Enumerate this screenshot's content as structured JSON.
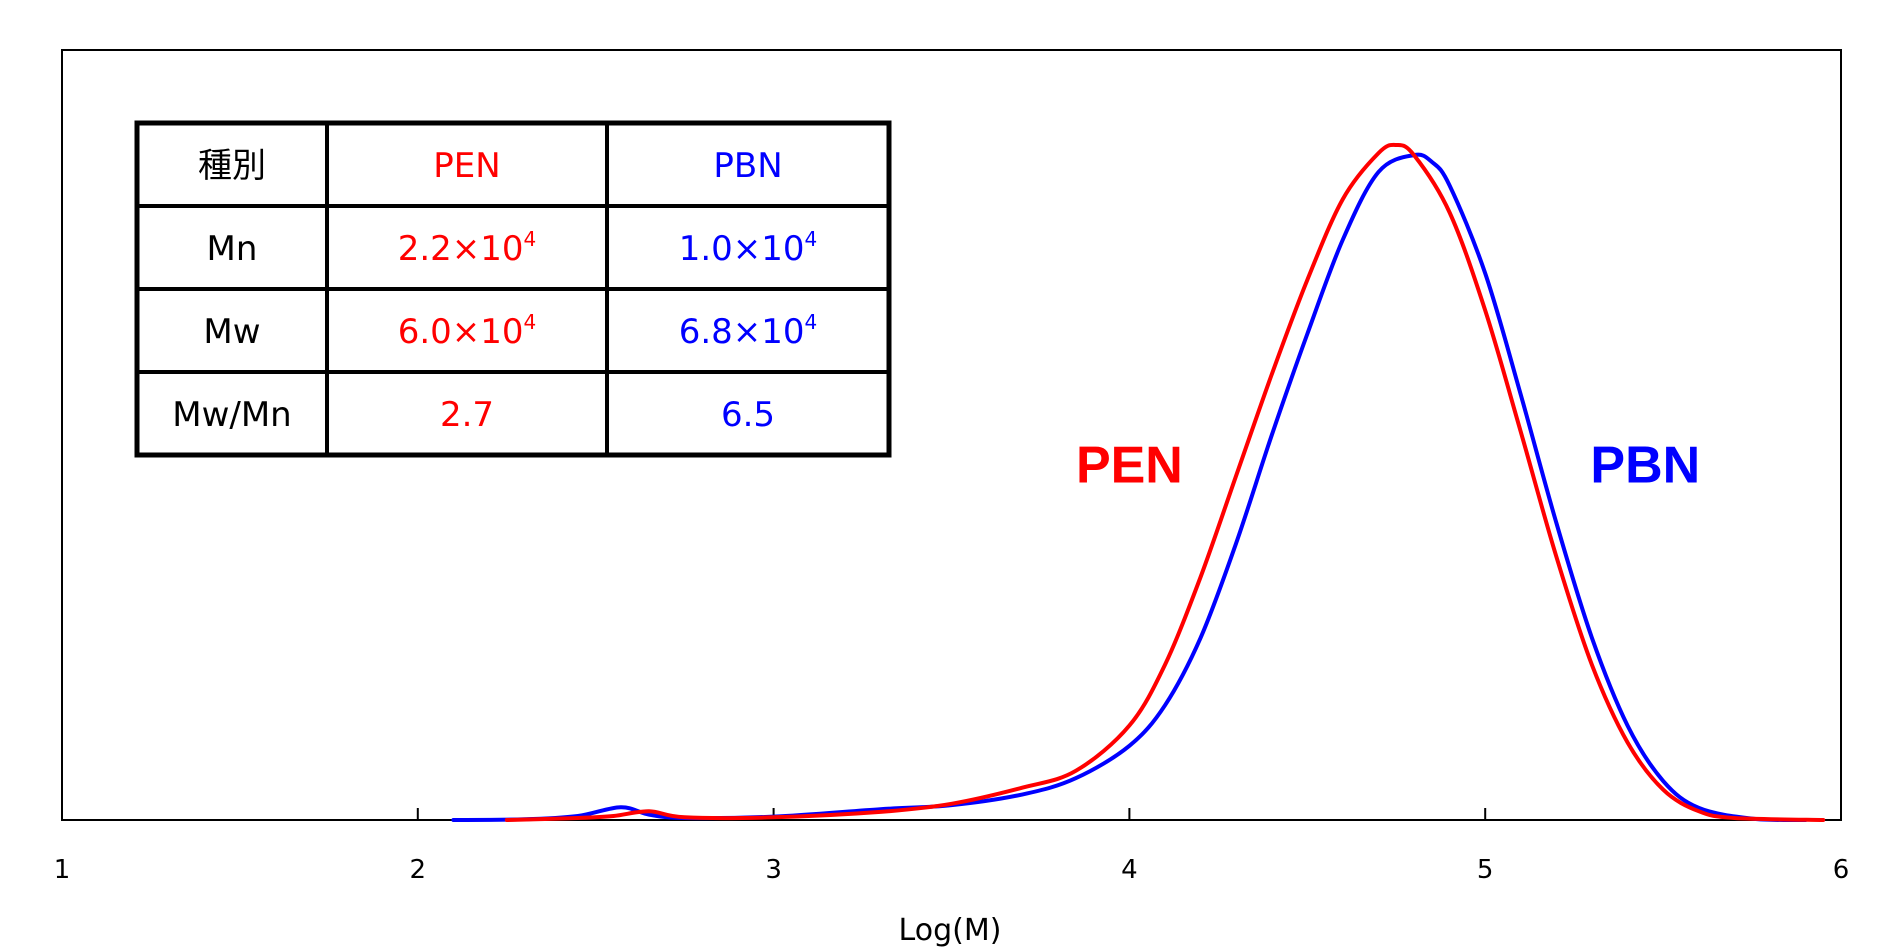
{
  "chart_data": {
    "type": "line",
    "xlabel": "Log(M)",
    "ylabel": "",
    "xlim": [
      1,
      6
    ],
    "ylim": [
      0,
      1.0
    ],
    "x_ticks": [
      "1",
      "2",
      "3",
      "4",
      "5",
      "6"
    ],
    "grid": false,
    "series": [
      {
        "name": "PEN",
        "color": "#ff0000",
        "points": [
          [
            2.25,
            0.0
          ],
          [
            2.45,
            0.003
          ],
          [
            2.55,
            0.006
          ],
          [
            2.65,
            0.013
          ],
          [
            2.75,
            0.004
          ],
          [
            3.0,
            0.004
          ],
          [
            3.3,
            0.012
          ],
          [
            3.5,
            0.024
          ],
          [
            3.7,
            0.048
          ],
          [
            3.85,
            0.073
          ],
          [
            4.0,
            0.14
          ],
          [
            4.1,
            0.23
          ],
          [
            4.2,
            0.36
          ],
          [
            4.3,
            0.51
          ],
          [
            4.4,
            0.66
          ],
          [
            4.5,
            0.8
          ],
          [
            4.6,
            0.92
          ],
          [
            4.7,
            0.988
          ],
          [
            4.75,
            1.0
          ],
          [
            4.8,
            0.985
          ],
          [
            4.9,
            0.9
          ],
          [
            5.0,
            0.755
          ],
          [
            5.1,
            0.575
          ],
          [
            5.2,
            0.39
          ],
          [
            5.3,
            0.23
          ],
          [
            5.4,
            0.115
          ],
          [
            5.5,
            0.045
          ],
          [
            5.6,
            0.013
          ],
          [
            5.7,
            0.003
          ],
          [
            5.95,
            0.0
          ]
        ]
      },
      {
        "name": "PBN",
        "color": "#0000ff",
        "points": [
          [
            2.1,
            0.0
          ],
          [
            2.3,
            0.001
          ],
          [
            2.45,
            0.006
          ],
          [
            2.57,
            0.019
          ],
          [
            2.65,
            0.008
          ],
          [
            2.75,
            0.003
          ],
          [
            3.0,
            0.005
          ],
          [
            3.3,
            0.016
          ],
          [
            3.5,
            0.022
          ],
          [
            3.7,
            0.038
          ],
          [
            3.85,
            0.062
          ],
          [
            4.0,
            0.11
          ],
          [
            4.1,
            0.17
          ],
          [
            4.2,
            0.27
          ],
          [
            4.3,
            0.41
          ],
          [
            4.4,
            0.57
          ],
          [
            4.5,
            0.72
          ],
          [
            4.6,
            0.86
          ],
          [
            4.7,
            0.96
          ],
          [
            4.8,
            0.985
          ],
          [
            4.85,
            0.975
          ],
          [
            4.9,
            0.94
          ],
          [
            5.0,
            0.81
          ],
          [
            5.1,
            0.63
          ],
          [
            5.2,
            0.44
          ],
          [
            5.3,
            0.27
          ],
          [
            5.4,
            0.14
          ],
          [
            5.5,
            0.058
          ],
          [
            5.6,
            0.018
          ],
          [
            5.75,
            0.002
          ],
          [
            5.9,
            0.0
          ]
        ]
      }
    ],
    "annotations": [
      {
        "text": "PEN",
        "color": "#ff0000",
        "x": 4.0,
        "y": 0.5
      },
      {
        "text": "PBN",
        "color": "#0000ff",
        "x": 5.45,
        "y": 0.5
      }
    ],
    "table": {
      "header": [
        "種別",
        "PEN",
        "PBN"
      ],
      "rows": [
        {
          "label": "Mn",
          "pen_mant": "2.2×10",
          "pen_exp": "4",
          "pbn_mant": "1.0×10",
          "pbn_exp": "4"
        },
        {
          "label": "Mw",
          "pen_mant": "6.0×10",
          "pen_exp": "4",
          "pbn_mant": "6.8×10",
          "pbn_exp": "4"
        },
        {
          "label": "Mw/Mn",
          "pen_mant": "2.7",
          "pen_exp": "",
          "pbn_mant": "6.5",
          "pbn_exp": ""
        }
      ]
    }
  }
}
